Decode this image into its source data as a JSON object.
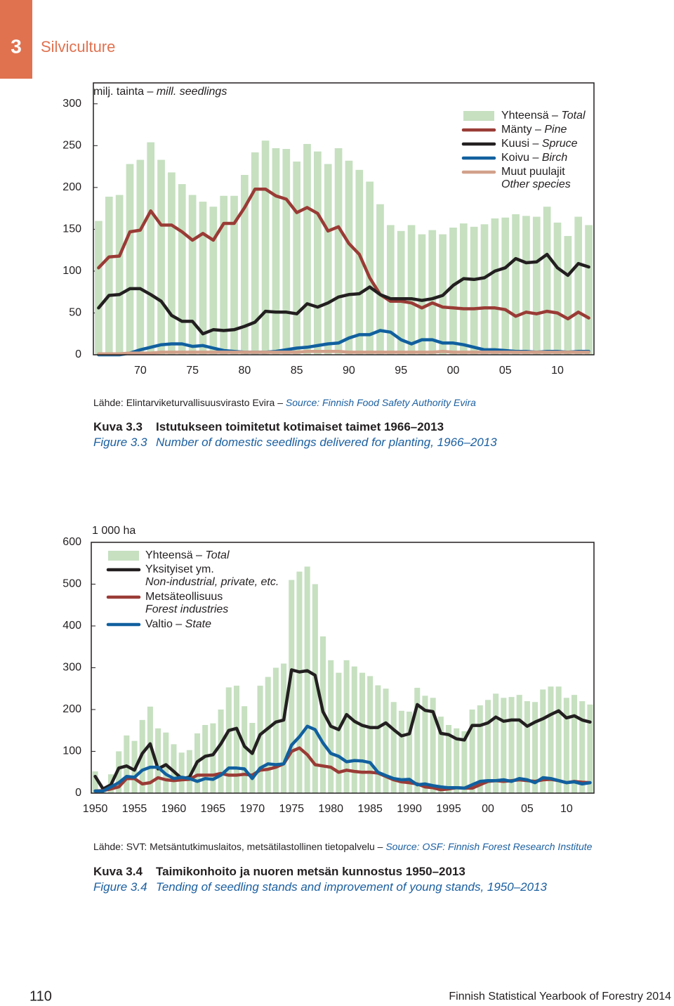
{
  "header": {
    "chapter": "3",
    "title": "Silviculture"
  },
  "chart_data": [
    {
      "type": "combo",
      "ylabel": "milj. tainta –",
      "ylabel_en": "mill. seedlings",
      "x": [
        1966,
        1967,
        1968,
        1969,
        1970,
        1971,
        1972,
        1973,
        1974,
        1975,
        1976,
        1977,
        1978,
        1979,
        1980,
        1981,
        1982,
        1983,
        1984,
        1985,
        1986,
        1987,
        1988,
        1989,
        1990,
        1991,
        1992,
        1993,
        1994,
        1995,
        1996,
        1997,
        1998,
        1999,
        2000,
        2001,
        2002,
        2003,
        2004,
        2005,
        2006,
        2007,
        2008,
        2009,
        2010,
        2011,
        2012,
        2013
      ],
      "xlim": [
        1965.5,
        2013.5
      ],
      "xticks": [
        {
          "value": 1970,
          "label": "70"
        },
        {
          "value": 1975,
          "label": "75"
        },
        {
          "value": 1980,
          "label": "80"
        },
        {
          "value": 1985,
          "label": "85"
        },
        {
          "value": 1990,
          "label": "90"
        },
        {
          "value": 1995,
          "label": "95"
        },
        {
          "value": 2000,
          "label": "00"
        },
        {
          "value": 2005,
          "label": "05"
        },
        {
          "value": 2010,
          "label": "10"
        }
      ],
      "ylim": [
        0,
        325
      ],
      "yticks": [
        0,
        50,
        100,
        150,
        200,
        250,
        300
      ],
      "legend": "upper right",
      "series": [
        {
          "type": "bar",
          "name": "Yhteensä –",
          "name_en": "Total",
          "color": "#c6e0c0",
          "values": [
            160,
            189,
            191,
            228,
            233,
            254,
            233,
            218,
            204,
            191,
            183,
            177,
            190,
            190,
            215,
            242,
            256,
            247,
            246,
            231,
            252,
            243,
            228,
            247,
            232,
            221,
            207,
            180,
            155,
            148,
            155,
            144,
            149,
            144,
            152,
            157,
            153,
            156,
            163,
            164,
            168,
            166,
            165,
            177,
            158,
            142,
            165,
            155
          ]
        },
        {
          "type": "line",
          "name": "Mänty –",
          "name_en": "Pine",
          "color": "#9a3b36",
          "values": [
            104,
            117,
            118,
            147,
            149,
            172,
            155,
            155,
            147,
            137,
            145,
            137,
            157,
            157,
            176,
            198,
            198,
            190,
            186,
            170,
            176,
            169,
            148,
            153,
            133,
            120,
            92,
            72,
            64,
            64,
            62,
            56,
            62,
            57,
            56,
            55,
            55,
            56,
            56,
            54,
            46,
            51,
            49,
            52,
            50,
            43,
            51,
            44
          ]
        },
        {
          "type": "line",
          "name": "Kuusi –",
          "name_en": "Spruce",
          "color": "#231f20",
          "values": [
            56,
            71,
            72,
            79,
            79,
            72,
            64,
            47,
            40,
            40,
            25,
            30,
            29,
            30,
            34,
            39,
            52,
            51,
            51,
            49,
            61,
            57,
            62,
            69,
            72,
            73,
            81,
            72,
            67,
            67,
            67,
            65,
            67,
            71,
            83,
            91,
            90,
            92,
            100,
            104,
            115,
            110,
            111,
            120,
            104,
            95,
            109,
            105
          ]
        },
        {
          "type": "line",
          "name": "Koivu –",
          "name_en": "Birch",
          "color": "#11609f",
          "values": [
            0,
            0,
            0,
            2,
            6,
            9,
            12,
            13,
            13,
            10,
            11,
            8,
            5,
            4,
            3,
            3,
            3,
            4,
            6,
            8,
            9,
            11,
            13,
            14,
            20,
            24,
            24,
            29,
            27,
            18,
            13,
            18,
            18,
            14,
            14,
            12,
            9,
            6,
            6,
            5,
            4,
            4,
            3,
            4,
            4,
            3,
            4,
            4
          ]
        },
        {
          "type": "line",
          "name": "Muut puulajit",
          "name_en": "Other species",
          "color": "#d2a08a",
          "values": [
            1,
            1,
            1,
            2,
            2,
            2,
            3,
            3,
            3,
            3,
            3,
            3,
            3,
            3,
            3,
            3,
            3,
            3,
            3,
            3,
            4,
            4,
            4,
            4,
            3,
            3,
            3,
            3,
            3,
            3,
            3,
            3,
            3,
            4,
            3,
            3,
            3,
            3,
            3,
            3,
            3,
            3,
            3,
            3,
            3,
            3,
            3,
            3
          ]
        }
      ],
      "source": "Lähde: Elintarviketurvallisuusvirasto Evira –",
      "source_en": "Source: Finnish Food Safety Authority Evira",
      "caption_label": "Kuva 3.3",
      "caption": "Istutukseen toimitetut kotimaiset taimet 1966–2013",
      "caption_label_en": "Figure 3.3",
      "caption_en": "Number of domestic seedlings delivered for planting, 1966–2013"
    },
    {
      "type": "combo",
      "ylabel": "1 000 ha",
      "x": [
        1950,
        1951,
        1952,
        1953,
        1954,
        1955,
        1956,
        1957,
        1958,
        1959,
        1960,
        1961,
        1962,
        1963,
        1964,
        1965,
        1966,
        1967,
        1968,
        1969,
        1970,
        1971,
        1972,
        1973,
        1974,
        1975,
        1976,
        1977,
        1978,
        1979,
        1980,
        1981,
        1982,
        1983,
        1984,
        1985,
        1986,
        1987,
        1988,
        1989,
        1990,
        1991,
        1992,
        1993,
        1994,
        1995,
        1996,
        1997,
        1998,
        1999,
        2000,
        2001,
        2002,
        2003,
        2004,
        2005,
        2006,
        2007,
        2008,
        2009,
        2010,
        2011,
        2012,
        2013
      ],
      "xlim": [
        1949.5,
        2013.5
      ],
      "xticks": [
        1950,
        1955,
        1960,
        1965,
        1970,
        1975,
        1980,
        1985,
        1990,
        1995,
        {
          "value": 2000,
          "label": "00"
        },
        {
          "value": 2005,
          "label": "05"
        },
        {
          "value": 2010,
          "label": "10"
        }
      ],
      "ylim": [
        0,
        600
      ],
      "yticks": [
        0,
        100,
        200,
        300,
        400,
        500,
        600
      ],
      "legend": "upper left",
      "series": [
        {
          "type": "bar",
          "name": "Yhteensä –",
          "name_en": "Total",
          "color": "#c6e0c0",
          "values": [
            52,
            8,
            45,
            100,
            138,
            125,
            175,
            207,
            155,
            145,
            117,
            97,
            103,
            143,
            163,
            167,
            200,
            253,
            257,
            208,
            168,
            257,
            278,
            300,
            310,
            510,
            530,
            542,
            500,
            375,
            318,
            288,
            318,
            303,
            288,
            280,
            258,
            250,
            218,
            197,
            195,
            252,
            233,
            228,
            183,
            163,
            155,
            148,
            200,
            210,
            223,
            238,
            228,
            230,
            235,
            220,
            218,
            248,
            255,
            255,
            228,
            235,
            220,
            212
          ]
        },
        {
          "type": "line",
          "name": "Yksityiset ym.",
          "name_en": "Non-industrial, private, etc.",
          "color": "#231f20",
          "values": [
            40,
            10,
            20,
            60,
            65,
            55,
            95,
            118,
            58,
            68,
            52,
            35,
            38,
            75,
            88,
            92,
            118,
            150,
            155,
            112,
            95,
            140,
            155,
            170,
            175,
            295,
            290,
            293,
            282,
            195,
            160,
            152,
            188,
            172,
            162,
            157,
            157,
            168,
            152,
            137,
            142,
            212,
            198,
            195,
            143,
            140,
            130,
            127,
            162,
            162,
            168,
            182,
            172,
            175,
            175,
            160,
            170,
            178,
            188,
            197,
            180,
            185,
            175,
            170
          ]
        },
        {
          "type": "line",
          "name": "Metsäteollisuus",
          "name_en": "Forest industries",
          "color": "#9a3b36",
          "values": [
            5,
            6,
            10,
            15,
            35,
            35,
            22,
            25,
            37,
            32,
            30,
            32,
            33,
            43,
            43,
            43,
            47,
            43,
            43,
            45,
            43,
            55,
            57,
            62,
            70,
            100,
            108,
            92,
            68,
            65,
            62,
            50,
            55,
            52,
            50,
            50,
            48,
            40,
            32,
            27,
            25,
            22,
            15,
            13,
            8,
            10,
            13,
            12,
            12,
            20,
            28,
            30,
            28,
            30,
            32,
            30,
            28,
            32,
            33,
            30,
            25,
            28,
            26,
            25
          ]
        },
        {
          "type": "line",
          "name": "Valtio –",
          "name_en": "State",
          "color": "#11609f",
          "values": [
            5,
            5,
            15,
            25,
            40,
            38,
            55,
            62,
            62,
            45,
            35,
            38,
            35,
            28,
            35,
            33,
            43,
            60,
            60,
            58,
            35,
            60,
            70,
            68,
            70,
            115,
            135,
            160,
            152,
            120,
            95,
            88,
            75,
            78,
            77,
            73,
            50,
            42,
            35,
            32,
            33,
            20,
            22,
            18,
            15,
            13,
            13,
            12,
            20,
            28,
            30,
            30,
            32,
            28,
            35,
            32,
            25,
            37,
            35,
            30,
            25,
            27,
            22,
            25
          ]
        }
      ],
      "source": "Lähde: SVT: Metsäntutkimuslaitos, metsätilastollinen tietopalvelu –",
      "source_en": "Source: OSF: Finnish Forest Research Institute",
      "caption_label": "Kuva 3.4",
      "caption": "Taimikonhoito ja nuoren metsän kunnostus 1950–2013",
      "caption_label_en": "Figure 3.4",
      "caption_en": "Tending of seedling stands and improvement of young stands, 1950–2013"
    }
  ],
  "footer": {
    "page": "110",
    "title": "Finnish Statistical Yearbook of Forestry 2014"
  }
}
